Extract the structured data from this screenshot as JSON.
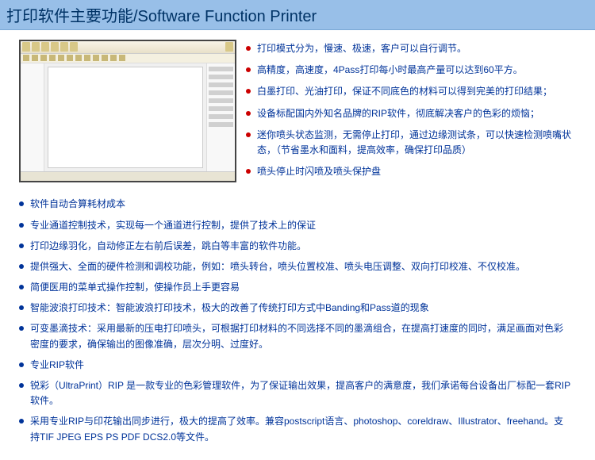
{
  "header": {
    "title": "打印软件主要功能/Software Function Printer"
  },
  "colors": {
    "header_bg": "#98bfe8",
    "header_text": "#003366",
    "red_bullet": "#cc0000",
    "blue_bullet": "#003399",
    "text_color": "#003399"
  },
  "right_items": [
    "打印模式分为，慢速、极速，客户可以自行调节。",
    "高精度，高速度，4Pass打印每小时最高产量可以达到60平方。",
    "白墨打印、光油打印，保证不同底色的材料可以得到完美的打印结果；",
    "设备标配国内外知名品牌的RIP软件，彻底解决客户的色彩的烦恼；",
    "迷你喷头状态监测，无需停止打印，通过边缘测试条，可以快速检测喷嘴状态，（节省墨水和面料，提高效率，确保打印品质）",
    "喷头停止时闪喷及喷头保护盘"
  ],
  "bottom_items": [
    "软件自动合算耗材成本",
    "专业通道控制技术，实现每一个通道进行控制，提供了技术上的保证",
    "打印边缘羽化，自动修正左右前后误差，跳白等丰富的软件功能。",
    "提供强大、全面的硬件检测和调校功能，例如：喷头转台，喷头位置校准、喷头电压调整、双向打印校准、不仅校准。",
    "简便医用的菜单式操作控制，使操作员上手更容易",
    "智能波浪打印技术：智能波浪打印技术，极大的改善了传统打印方式中Banding和Pass道的现象",
    "可变墨滴技术：采用最新的压电打印喷头，可根据打印材料的不同选择不同的墨滴组合，在提高打速度的同时，满足画面对色彩密度的要求，确保输出的图像准确，层次分明、过度好。",
    "专业RIP软件",
    "锐彩（UltraPrint）RIP 是一款专业的色彩管理软件，为了保证输出效果，提高客户的满意度，我们承诺每台设备出厂标配一套RIP软件。",
    "采用专业RIP与印花输出同步进行，极大的提高了效率。兼容postscript语言、photoshop、coreldraw、Illustrator、freehand。支持TIF JPEG EPS PS PDF DCS2.0等文件。"
  ]
}
